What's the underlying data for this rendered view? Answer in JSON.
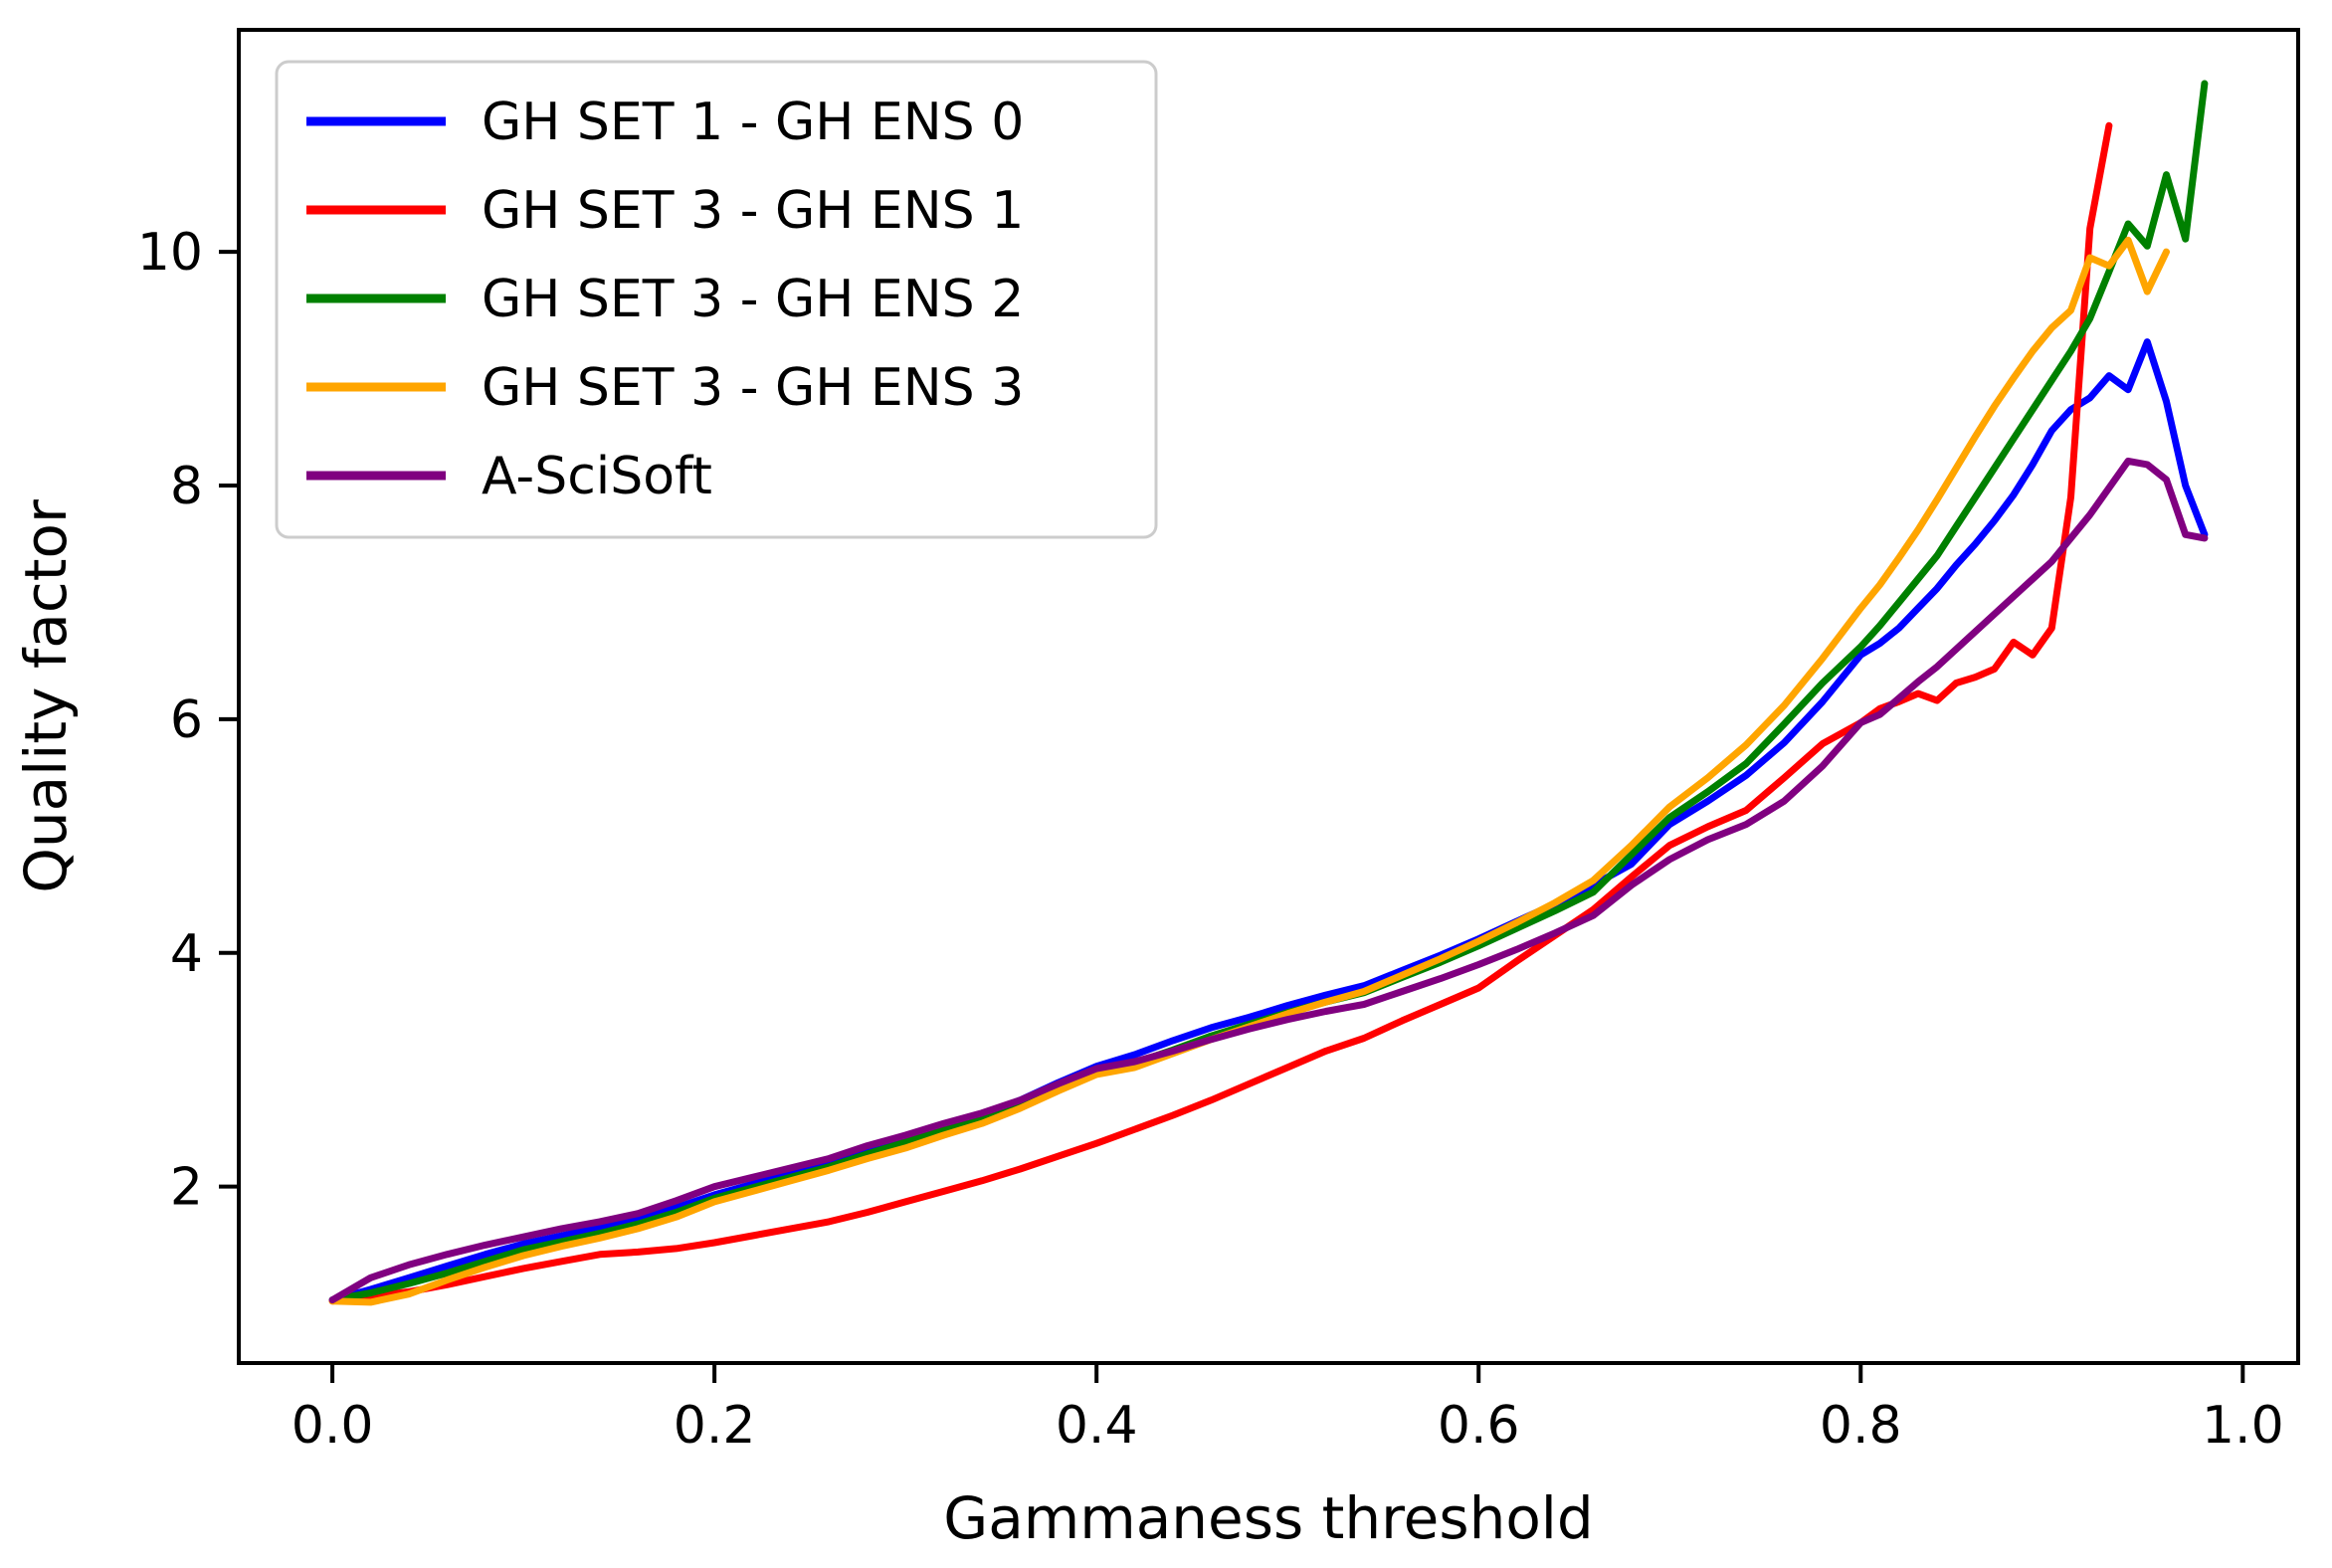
{
  "chart_data": {
    "type": "line",
    "title": "",
    "xlabel": "Gammaness threshold",
    "ylabel": "Quality factor",
    "background": "#ffffff",
    "grid": false,
    "legend_position": "upper left",
    "xlim": [
      -0.049,
      1.029
    ],
    "ylim": [
      0.49,
      11.9
    ],
    "x_ticks": [
      0.0,
      0.2,
      0.4,
      0.6,
      0.8,
      1.0
    ],
    "x_tick_labels": [
      "0.0",
      "0.2",
      "0.4",
      "0.6",
      "0.8",
      "1.0"
    ],
    "y_ticks": [
      2,
      4,
      6,
      8,
      10
    ],
    "y_tick_labels": [
      "2",
      "4",
      "6",
      "8",
      "10"
    ],
    "series": [
      {
        "name": "GH SET 1 - GH ENS 0",
        "color": "#0000ff",
        "x": [
          0,
          0.02,
          0.04,
          0.06,
          0.08,
          0.1,
          0.12,
          0.14,
          0.16,
          0.18,
          0.2,
          0.22,
          0.24,
          0.26,
          0.28,
          0.3,
          0.32,
          0.34,
          0.36,
          0.38,
          0.4,
          0.42,
          0.44,
          0.46,
          0.48,
          0.5,
          0.52,
          0.54,
          0.56,
          0.58,
          0.6,
          0.62,
          0.64,
          0.66,
          0.68,
          0.7,
          0.72,
          0.74,
          0.76,
          0.78,
          0.8,
          0.81,
          0.82,
          0.83,
          0.84,
          0.85,
          0.86,
          0.87,
          0.88,
          0.89,
          0.9,
          0.91,
          0.92,
          0.93,
          0.94,
          0.95,
          0.96,
          0.97,
          0.98
        ],
        "y": [
          1.03,
          1.12,
          1.22,
          1.32,
          1.42,
          1.51,
          1.58,
          1.65,
          1.72,
          1.82,
          1.93,
          2.02,
          2.11,
          2.2,
          2.31,
          2.41,
          2.52,
          2.62,
          2.74,
          2.89,
          3.03,
          3.13,
          3.25,
          3.36,
          3.45,
          3.55,
          3.64,
          3.72,
          3.85,
          3.98,
          4.12,
          4.27,
          4.42,
          4.58,
          4.76,
          5.1,
          5.3,
          5.52,
          5.8,
          6.15,
          6.55,
          6.65,
          6.78,
          6.95,
          7.12,
          7.32,
          7.5,
          7.7,
          7.92,
          8.18,
          8.47,
          8.65,
          8.75,
          8.94,
          8.82,
          9.23,
          8.72,
          8.0,
          7.58
        ]
      },
      {
        "name": "GH SET 3 - GH ENS 1",
        "color": "#ff0000",
        "x": [
          0,
          0.02,
          0.04,
          0.06,
          0.08,
          0.1,
          0.12,
          0.14,
          0.16,
          0.18,
          0.2,
          0.22,
          0.24,
          0.26,
          0.28,
          0.3,
          0.32,
          0.34,
          0.36,
          0.38,
          0.4,
          0.42,
          0.44,
          0.46,
          0.48,
          0.5,
          0.52,
          0.54,
          0.56,
          0.58,
          0.6,
          0.62,
          0.64,
          0.66,
          0.68,
          0.7,
          0.72,
          0.74,
          0.76,
          0.78,
          0.8,
          0.81,
          0.82,
          0.83,
          0.84,
          0.85,
          0.86,
          0.87,
          0.88,
          0.89,
          0.9,
          0.91,
          0.92,
          0.93
        ],
        "y": [
          1.02,
          1.06,
          1.1,
          1.16,
          1.23,
          1.3,
          1.36,
          1.42,
          1.44,
          1.47,
          1.52,
          1.58,
          1.64,
          1.7,
          1.78,
          1.87,
          1.96,
          2.05,
          2.15,
          2.26,
          2.37,
          2.49,
          2.61,
          2.74,
          2.88,
          3.02,
          3.16,
          3.27,
          3.42,
          3.56,
          3.7,
          3.93,
          4.15,
          4.37,
          4.65,
          4.92,
          5.08,
          5.22,
          5.5,
          5.79,
          5.97,
          6.09,
          6.15,
          6.22,
          6.16,
          6.31,
          6.36,
          6.43,
          6.66,
          6.55,
          6.78,
          7.9,
          10.2,
          11.08
        ]
      },
      {
        "name": "GH SET 3 - GH ENS 2",
        "color": "#008000",
        "x": [
          0,
          0.02,
          0.04,
          0.06,
          0.08,
          0.1,
          0.12,
          0.14,
          0.16,
          0.18,
          0.2,
          0.22,
          0.24,
          0.26,
          0.28,
          0.3,
          0.32,
          0.34,
          0.36,
          0.38,
          0.4,
          0.42,
          0.44,
          0.46,
          0.48,
          0.5,
          0.52,
          0.54,
          0.56,
          0.58,
          0.6,
          0.62,
          0.64,
          0.66,
          0.68,
          0.7,
          0.72,
          0.74,
          0.76,
          0.78,
          0.8,
          0.81,
          0.82,
          0.83,
          0.84,
          0.85,
          0.86,
          0.87,
          0.88,
          0.89,
          0.9,
          0.91,
          0.92,
          0.93,
          0.94,
          0.95,
          0.96,
          0.97,
          0.98
        ],
        "y": [
          1.03,
          1.09,
          1.17,
          1.26,
          1.36,
          1.46,
          1.53,
          1.6,
          1.68,
          1.78,
          1.9,
          1.99,
          2.08,
          2.17,
          2.28,
          2.38,
          2.49,
          2.59,
          2.71,
          2.86,
          3.0,
          3.06,
          3.17,
          3.29,
          3.39,
          3.49,
          3.58,
          3.66,
          3.79,
          3.92,
          4.06,
          4.21,
          4.36,
          4.52,
          4.84,
          5.16,
          5.38,
          5.62,
          5.96,
          6.31,
          6.62,
          6.8,
          7.0,
          7.2,
          7.4,
          7.65,
          7.9,
          8.15,
          8.4,
          8.65,
          8.9,
          9.15,
          9.43,
          9.83,
          10.24,
          10.05,
          10.66,
          10.11,
          11.44
        ]
      },
      {
        "name": "GH SET 3 - GH ENS 3",
        "color": "#ffa500",
        "x": [
          0,
          0.02,
          0.04,
          0.06,
          0.08,
          0.1,
          0.12,
          0.14,
          0.16,
          0.18,
          0.2,
          0.22,
          0.24,
          0.26,
          0.28,
          0.3,
          0.32,
          0.34,
          0.36,
          0.38,
          0.4,
          0.42,
          0.44,
          0.46,
          0.48,
          0.5,
          0.52,
          0.54,
          0.56,
          0.58,
          0.6,
          0.62,
          0.64,
          0.66,
          0.68,
          0.7,
          0.72,
          0.74,
          0.76,
          0.78,
          0.8,
          0.81,
          0.82,
          0.83,
          0.84,
          0.85,
          0.86,
          0.87,
          0.88,
          0.89,
          0.9,
          0.91,
          0.92,
          0.93,
          0.94,
          0.95,
          0.96
        ],
        "y": [
          1.02,
          1.01,
          1.08,
          1.2,
          1.31,
          1.41,
          1.49,
          1.56,
          1.64,
          1.74,
          1.87,
          1.96,
          2.05,
          2.14,
          2.24,
          2.33,
          2.44,
          2.54,
          2.67,
          2.82,
          2.96,
          3.02,
          3.14,
          3.26,
          3.37,
          3.48,
          3.58,
          3.67,
          3.81,
          3.95,
          4.1,
          4.26,
          4.43,
          4.62,
          4.92,
          5.25,
          5.5,
          5.78,
          6.12,
          6.52,
          6.95,
          7.15,
          7.38,
          7.62,
          7.88,
          8.15,
          8.42,
          8.68,
          8.92,
          9.15,
          9.35,
          9.5,
          9.95,
          9.88,
          10.1,
          9.66,
          10.0
        ]
      },
      {
        "name": "A-SciSoft",
        "color": "#800080",
        "x": [
          0,
          0.02,
          0.04,
          0.06,
          0.08,
          0.1,
          0.12,
          0.14,
          0.16,
          0.18,
          0.2,
          0.22,
          0.24,
          0.26,
          0.28,
          0.3,
          0.32,
          0.34,
          0.36,
          0.38,
          0.4,
          0.42,
          0.44,
          0.46,
          0.48,
          0.5,
          0.52,
          0.54,
          0.56,
          0.58,
          0.6,
          0.62,
          0.64,
          0.66,
          0.68,
          0.7,
          0.72,
          0.74,
          0.76,
          0.78,
          0.8,
          0.81,
          0.82,
          0.83,
          0.84,
          0.85,
          0.86,
          0.87,
          0.88,
          0.89,
          0.9,
          0.91,
          0.92,
          0.93,
          0.94,
          0.95,
          0.96,
          0.97,
          0.98
        ],
        "y": [
          1.03,
          1.22,
          1.33,
          1.42,
          1.5,
          1.57,
          1.64,
          1.7,
          1.77,
          1.88,
          2.0,
          2.08,
          2.16,
          2.24,
          2.35,
          2.44,
          2.54,
          2.63,
          2.74,
          2.88,
          3.01,
          3.07,
          3.16,
          3.26,
          3.35,
          3.43,
          3.5,
          3.56,
          3.67,
          3.78,
          3.9,
          4.03,
          4.17,
          4.32,
          4.58,
          4.8,
          4.97,
          5.1,
          5.3,
          5.6,
          5.97,
          6.04,
          6.18,
          6.32,
          6.45,
          6.6,
          6.75,
          6.9,
          7.05,
          7.2,
          7.35,
          7.55,
          7.75,
          7.98,
          8.21,
          8.18,
          8.05,
          7.58,
          7.55
        ]
      }
    ]
  }
}
